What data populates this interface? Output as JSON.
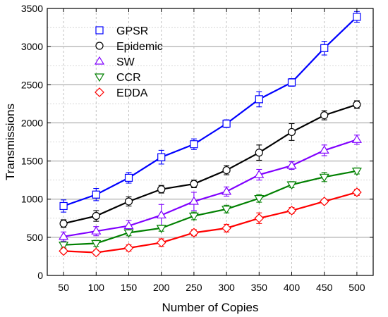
{
  "chart_data": {
    "type": "line",
    "title": "",
    "xlabel": "Number of Copies",
    "ylabel": "Transmissions",
    "x": [
      50,
      100,
      150,
      200,
      250,
      300,
      350,
      400,
      450,
      500
    ],
    "xlim": [
      25,
      525
    ],
    "ylim": [
      0,
      3500
    ],
    "yticks": [
      0,
      500,
      1000,
      1500,
      2000,
      2500,
      3000,
      3500
    ],
    "grid": true,
    "legend_position": "top-left",
    "series": [
      {
        "name": "GPSR",
        "color": "#0000ff",
        "marker": "square",
        "values": [
          910,
          1060,
          1280,
          1550,
          1720,
          1990,
          2310,
          2530,
          2980,
          3390
        ],
        "errors": [
          80,
          80,
          70,
          90,
          70,
          50,
          100,
          50,
          90,
          70
        ]
      },
      {
        "name": "Epidemic",
        "color": "#000000",
        "marker": "circle",
        "values": [
          680,
          780,
          970,
          1130,
          1200,
          1380,
          1610,
          1880,
          2100,
          2240
        ],
        "errors": [
          50,
          70,
          60,
          50,
          50,
          60,
          100,
          110,
          60,
          50
        ]
      },
      {
        "name": "SW",
        "color": "#8000ff",
        "marker": "triangle-up",
        "values": [
          510,
          580,
          650,
          790,
          970,
          1100,
          1320,
          1440,
          1640,
          1780
        ],
        "errors": [
          60,
          60,
          70,
          140,
          120,
          60,
          70,
          50,
          70,
          60
        ]
      },
      {
        "name": "CCR",
        "color": "#008000",
        "marker": "triangle-down",
        "values": [
          400,
          420,
          560,
          620,
          780,
          870,
          1010,
          1190,
          1290,
          1370
        ],
        "errors": [
          40,
          40,
          40,
          40,
          50,
          50,
          50,
          40,
          60,
          40
        ]
      },
      {
        "name": "EDDA",
        "color": "#ff0000",
        "marker": "diamond",
        "values": [
          320,
          300,
          360,
          430,
          560,
          620,
          750,
          850,
          970,
          1090
        ],
        "errors": [
          30,
          30,
          40,
          50,
          40,
          50,
          70,
          40,
          30,
          40
        ]
      }
    ]
  }
}
